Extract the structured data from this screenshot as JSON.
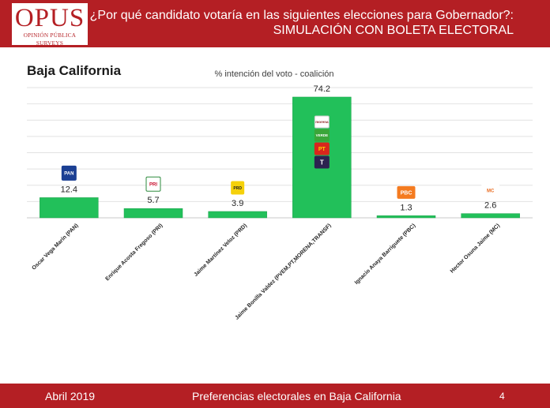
{
  "header": {
    "logo_word": "OPUS",
    "logo_tagline": "OPINIÓN PÚBLICA SURVEYS",
    "title_line1": "¿Por qué candidato votaría en las siguientes elecciones para Gobernador?:",
    "title_line2": "SIMULACIÓN CON BOLETA ELECTORAL"
  },
  "region": "Baja California",
  "chart_data": {
    "type": "bar",
    "title": "% intención del voto - coalición",
    "categories": [
      "Oscar Vega Marín (PAN)",
      "Enrique Acosta Fregoso (PRI)",
      "Jaime Martínez Veloz (PRD)",
      "Jaime Bonilla Valdez (PVEM,PT,MORENA,TRANSF)",
      "Ignacio Anaya Barriguete (PBC)",
      "Hector Osuna Jaime (MC)"
    ],
    "values": [
      12.4,
      5.7,
      3.9,
      74.2,
      1.3,
      2.6
    ],
    "party_logos": [
      [
        "PAN"
      ],
      [
        "PRI"
      ],
      [
        "PRD"
      ],
      [
        "morena",
        "VERDE",
        "PT",
        "T"
      ],
      [
        "PBC"
      ],
      [
        "MC"
      ]
    ],
    "ylim": [
      0,
      80
    ],
    "grid": true,
    "legend": "none",
    "bar_color": "#22c05a"
  },
  "footer": {
    "date": "Abril 2019",
    "center": "Preferencias electorales en Baja California",
    "page": "4"
  }
}
